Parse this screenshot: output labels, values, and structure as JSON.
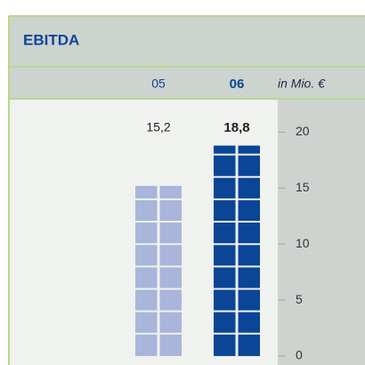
{
  "chart_data": {
    "type": "bar",
    "title": "EBITDA",
    "unit": "in Mio. €",
    "categories": [
      "05",
      "06"
    ],
    "values": [
      15.2,
      18.8
    ],
    "value_labels": [
      "15,2",
      "18,8"
    ],
    "colors": [
      "#a9b5da",
      "#0b4596"
    ],
    "ylim": [
      -0.8,
      22.9
    ],
    "yticks": [
      0,
      5,
      10,
      15,
      20
    ]
  }
}
